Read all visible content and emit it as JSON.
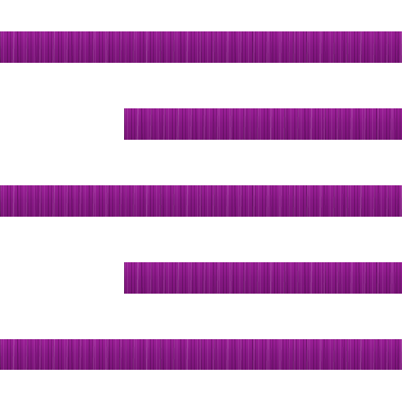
{
  "icon": {
    "name": "align-right-icon",
    "color": "#8a1a86",
    "background": "#ffffff",
    "lines": [
      {
        "id": "line-1",
        "length": "full"
      },
      {
        "id": "line-2",
        "length": "short"
      },
      {
        "id": "line-3",
        "length": "full"
      },
      {
        "id": "line-4",
        "length": "short"
      },
      {
        "id": "line-5",
        "length": "full"
      }
    ]
  }
}
